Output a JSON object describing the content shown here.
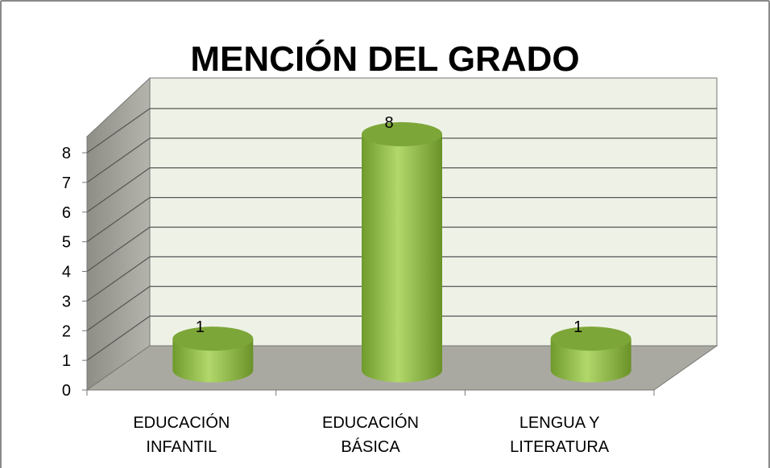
{
  "chart_data": {
    "type": "bar",
    "title": "MENCIÓN DEL GRADO",
    "categories": [
      "EDUCACIÓN INFANTIL",
      "EDUCACIÓN BÁSICA",
      "LENGUA Y LITERATURA"
    ],
    "values": [
      1,
      8,
      1
    ],
    "color": "#8db84a",
    "ylim": [
      0,
      8
    ],
    "yticks": [
      0,
      1,
      2,
      3,
      4,
      5,
      6,
      7,
      8
    ],
    "grid": true
  }
}
